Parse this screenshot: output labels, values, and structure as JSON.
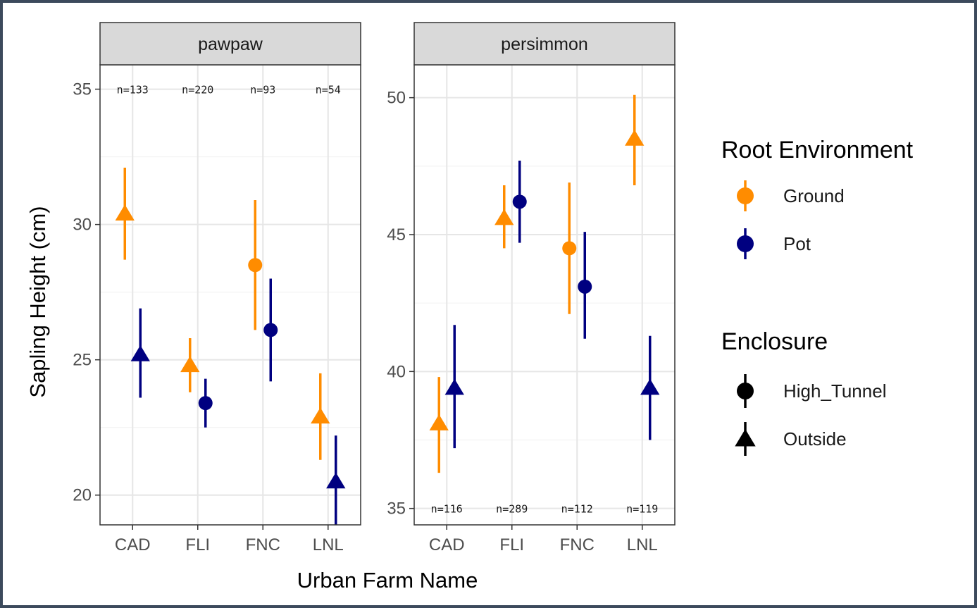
{
  "chart_data": {
    "type": "scatter",
    "subtype": "point-range (mean with error bars), faceted",
    "xlabel": "Urban Farm Name",
    "ylabel": "Sapling Height (cm)",
    "categories": [
      "CAD",
      "FLI",
      "FNC",
      "LNL"
    ],
    "grid": true,
    "facets": [
      {
        "label": "pawpaw",
        "ylim": [
          18.9,
          35.9
        ],
        "yticks": [
          20,
          25,
          30,
          35
        ],
        "sample_sizes": [
          "n=133",
          "n=220",
          "n=93",
          "n=54"
        ],
        "sample_size_y": 35,
        "points": [
          {
            "x": "CAD",
            "root": "Ground",
            "enclosure": "Outside",
            "y": 30.4,
            "ymin": 28.7,
            "ymax": 32.1
          },
          {
            "x": "CAD",
            "root": "Pot",
            "enclosure": "Outside",
            "y": 25.2,
            "ymin": 23.6,
            "ymax": 26.9
          },
          {
            "x": "FLI",
            "root": "Pot",
            "enclosure": "High_Tunnel",
            "y": 23.4,
            "ymin": 22.5,
            "ymax": 24.3
          },
          {
            "x": "FLI",
            "root": "Ground",
            "enclosure": "Outside",
            "y": 24.8,
            "ymin": 23.8,
            "ymax": 25.8
          },
          {
            "x": "FNC",
            "root": "Ground",
            "enclosure": "High_Tunnel",
            "y": 28.5,
            "ymin": 26.1,
            "ymax": 30.9
          },
          {
            "x": "FNC",
            "root": "Pot",
            "enclosure": "High_Tunnel",
            "y": 26.1,
            "ymin": 24.2,
            "ymax": 28.0
          },
          {
            "x": "LNL",
            "root": "Ground",
            "enclosure": "Outside",
            "y": 22.9,
            "ymin": 21.3,
            "ymax": 24.5
          },
          {
            "x": "LNL",
            "root": "Pot",
            "enclosure": "Outside",
            "y": 20.5,
            "ymin": 18.9,
            "ymax": 22.2
          }
        ]
      },
      {
        "label": "persimmon",
        "ylim": [
          34.4,
          51.2
        ],
        "yticks": [
          35,
          40,
          45,
          50
        ],
        "sample_sizes": [
          "n=116",
          "n=289",
          "n=112",
          "n=119"
        ],
        "sample_size_y": 35,
        "points": [
          {
            "x": "CAD",
            "root": "Ground",
            "enclosure": "Outside",
            "y": 38.1,
            "ymin": 36.3,
            "ymax": 39.8
          },
          {
            "x": "CAD",
            "root": "Pot",
            "enclosure": "Outside",
            "y": 39.4,
            "ymin": 37.2,
            "ymax": 41.7
          },
          {
            "x": "FLI",
            "root": "Pot",
            "enclosure": "High_Tunnel",
            "y": 46.2,
            "ymin": 44.7,
            "ymax": 47.7
          },
          {
            "x": "FLI",
            "root": "Ground",
            "enclosure": "Outside",
            "y": 45.6,
            "ymin": 44.5,
            "ymax": 46.8
          },
          {
            "x": "FNC",
            "root": "Ground",
            "enclosure": "High_Tunnel",
            "y": 44.5,
            "ymin": 42.1,
            "ymax": 46.9
          },
          {
            "x": "FNC",
            "root": "Pot",
            "enclosure": "High_Tunnel",
            "y": 43.1,
            "ymin": 41.2,
            "ymax": 45.1
          },
          {
            "x": "LNL",
            "root": "Ground",
            "enclosure": "Outside",
            "y": 48.5,
            "ymin": 46.8,
            "ymax": 50.1
          },
          {
            "x": "LNL",
            "root": "Pot",
            "enclosure": "Outside",
            "y": 39.4,
            "ymin": 37.5,
            "ymax": 41.3
          }
        ]
      }
    ],
    "legends": [
      {
        "title": "Root Environment",
        "entries": [
          {
            "label": "Ground",
            "color": "#ff8c00"
          },
          {
            "label": "Pot",
            "color": "#000080"
          }
        ]
      },
      {
        "title": "Enclosure",
        "entries": [
          {
            "label": "High_Tunnel",
            "shape": "circle"
          },
          {
            "label": "Outside",
            "shape": "triangle"
          }
        ]
      }
    ],
    "legend_position": "right"
  }
}
